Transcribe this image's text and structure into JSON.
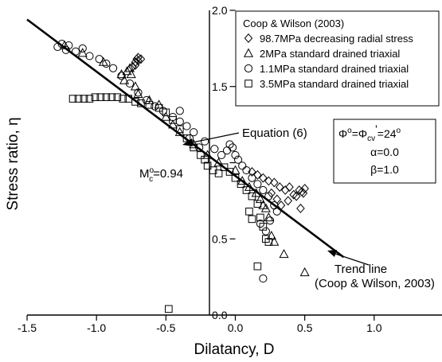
{
  "chart_data": {
    "type": "scatter",
    "xlabel": "Dilatancy, D",
    "ylabel": "Stress ratio, η",
    "xlim": [
      -1.5,
      1.5
    ],
    "ylim": [
      0.0,
      2.0
    ],
    "x_ticks": [
      -1.5,
      -1.0,
      -0.5,
      0.0,
      0.5,
      1.0
    ],
    "x_tick_labels": [
      "-1.5",
      "-1.0",
      "-0.5",
      "0.0",
      "0.5",
      "1.0"
    ],
    "y_ticks": [
      0.0,
      0.5,
      1.0,
      1.5,
      2.0
    ],
    "y_tick_labels": [
      "0.0",
      "0.5",
      "",
      "1.5",
      "2.0"
    ],
    "legend_title": "Coop & Wilson (2003)",
    "legend_placement": "top-right",
    "series": [
      {
        "name": "98.7MPa decreasing radial stress",
        "marker": "diamond",
        "points": [
          [
            -0.72,
            1.66
          ],
          [
            -0.71,
            1.68
          ],
          [
            -0.7,
            1.67
          ],
          [
            -0.72,
            1.64
          ],
          [
            -0.74,
            1.63
          ],
          [
            -0.7,
            1.69
          ],
          [
            -0.68,
            1.68
          ],
          [
            0.12,
            0.94
          ],
          [
            0.16,
            0.92
          ],
          [
            0.2,
            0.9
          ],
          [
            0.24,
            0.88
          ],
          [
            0.28,
            0.87
          ],
          [
            0.32,
            0.84
          ],
          [
            0.36,
            0.82
          ],
          [
            0.39,
            0.84
          ],
          [
            0.42,
            0.79
          ],
          [
            0.44,
            0.78
          ],
          [
            0.46,
            0.82
          ],
          [
            0.48,
            0.81
          ],
          [
            0.5,
            0.83
          ],
          [
            0.3,
            0.76
          ],
          [
            0.38,
            0.75
          ],
          [
            0.33,
            0.72
          ],
          [
            0.47,
            0.7
          ],
          [
            0.49,
            0.8
          ],
          [
            0.26,
            0.8
          ]
        ]
      },
      {
        "name": "2MPa standard drained triaxial",
        "marker": "triangle",
        "points": [
          [
            -1.23,
            1.77
          ],
          [
            -1.1,
            1.72
          ],
          [
            -0.95,
            1.66
          ],
          [
            -0.82,
            1.58
          ],
          [
            -0.78,
            1.6
          ],
          [
            -0.76,
            1.62
          ],
          [
            -0.75,
            1.58
          ],
          [
            -0.8,
            1.54
          ],
          [
            -0.72,
            1.5
          ],
          [
            -0.7,
            1.45
          ],
          [
            -0.62,
            1.41
          ],
          [
            -0.55,
            1.38
          ],
          [
            -0.5,
            1.3
          ],
          [
            -0.45,
            1.25
          ],
          [
            -0.4,
            1.2
          ],
          [
            -0.3,
            1.12
          ],
          [
            -0.2,
            1.05
          ],
          [
            -0.12,
            1.0
          ],
          [
            0.0,
            0.95
          ],
          [
            0.05,
            0.88
          ],
          [
            0.1,
            0.84
          ],
          [
            0.15,
            0.8
          ],
          [
            0.18,
            0.76
          ],
          [
            0.2,
            0.72
          ],
          [
            0.22,
            0.7
          ],
          [
            0.24,
            0.64
          ],
          [
            0.26,
            0.52
          ],
          [
            0.28,
            0.48
          ],
          [
            0.35,
            0.4
          ],
          [
            0.5,
            0.28
          ]
        ]
      },
      {
        "name": "1.1MPa standard drained triaxial",
        "marker": "circle",
        "points": [
          [
            -1.28,
            1.76
          ],
          [
            -1.25,
            1.78
          ],
          [
            -1.22,
            1.74
          ],
          [
            -1.2,
            1.77
          ],
          [
            -1.15,
            1.73
          ],
          [
            -1.1,
            1.75
          ],
          [
            -1.05,
            1.7
          ],
          [
            -0.98,
            1.68
          ],
          [
            -0.93,
            1.65
          ],
          [
            -0.88,
            1.62
          ],
          [
            -0.82,
            1.57
          ],
          [
            -0.76,
            1.52
          ],
          [
            -0.7,
            1.46
          ],
          [
            -0.64,
            1.41
          ],
          [
            -0.58,
            1.37
          ],
          [
            -0.52,
            1.34
          ],
          [
            -0.45,
            1.3
          ],
          [
            -0.4,
            1.27
          ],
          [
            -0.35,
            1.24
          ],
          [
            -0.3,
            1.2
          ],
          [
            -0.22,
            1.14
          ],
          [
            -0.15,
            1.09
          ],
          [
            -0.1,
            1.05
          ],
          [
            -0.06,
            1.08
          ],
          [
            -0.04,
            1.12
          ],
          [
            -0.02,
            1.1
          ],
          [
            0.0,
            1.05
          ],
          [
            0.02,
            1.02
          ],
          [
            0.05,
            0.98
          ],
          [
            0.08,
            0.95
          ],
          [
            0.12,
            0.9
          ],
          [
            0.16,
            0.86
          ],
          [
            0.2,
            0.82
          ],
          [
            0.24,
            0.78
          ],
          [
            0.28,
            0.72
          ],
          [
            0.3,
            0.68
          ],
          [
            0.25,
            0.62
          ],
          [
            0.18,
            0.6
          ],
          [
            0.22,
            0.55
          ],
          [
            0.2,
            0.24
          ],
          [
            -0.4,
            1.34
          ],
          [
            -0.33,
            1.16
          ],
          [
            -0.26,
            1.1
          ]
        ]
      },
      {
        "name": "3.5MPa standard drained triaxial",
        "marker": "square",
        "points": [
          [
            -1.17,
            1.42
          ],
          [
            -1.13,
            1.42
          ],
          [
            -1.09,
            1.42
          ],
          [
            -1.05,
            1.42
          ],
          [
            -1.01,
            1.43
          ],
          [
            -0.97,
            1.43
          ],
          [
            -0.93,
            1.43
          ],
          [
            -0.89,
            1.43
          ],
          [
            -0.85,
            1.43
          ],
          [
            -0.81,
            1.42
          ],
          [
            -0.77,
            1.42
          ],
          [
            -0.72,
            1.4
          ],
          [
            -0.68,
            1.39
          ],
          [
            -0.62,
            1.38
          ],
          [
            -0.55,
            1.36
          ],
          [
            -0.5,
            1.33
          ],
          [
            -0.45,
            1.28
          ],
          [
            -0.4,
            1.22
          ],
          [
            -0.35,
            1.16
          ],
          [
            -0.3,
            1.1
          ],
          [
            -0.25,
            1.05
          ],
          [
            -0.22,
            1.02
          ],
          [
            -0.2,
            0.98
          ],
          [
            -0.16,
            0.95
          ],
          [
            -0.12,
            0.93
          ],
          [
            -0.08,
            0.97
          ],
          [
            -0.04,
            0.94
          ],
          [
            0.0,
            0.9
          ],
          [
            0.04,
            0.86
          ],
          [
            0.08,
            0.82
          ],
          [
            0.12,
            0.78
          ],
          [
            0.16,
            0.73
          ],
          [
            0.18,
            0.64
          ],
          [
            0.2,
            0.58
          ],
          [
            0.22,
            0.5
          ],
          [
            0.24,
            0.48
          ],
          [
            0.1,
            0.68
          ],
          [
            0.12,
            0.63
          ],
          [
            0.16,
            0.32
          ],
          [
            -0.48,
            0.04
          ]
        ]
      }
    ],
    "trend_line": {
      "label": "Trend line",
      "source": "(Coop & Wilson, 2003)",
      "from": [
        -1.5,
        1.94
      ],
      "to": [
        0.78,
        0.38
      ]
    },
    "annotations": {
      "equation": "Equation (6)",
      "mc_prefix": "M",
      "mc_sup": "o",
      "mc_sub": "c",
      "mc_value": "=0.94"
    },
    "params": {
      "phi": "Φ",
      "phi_sup": "o",
      "eq": "=Φ",
      "cv_sub": "cv",
      "prime": "'",
      "value": "=24",
      "value_sup": "o",
      "alpha": "α=0.0",
      "beta": "β=1.0"
    }
  }
}
